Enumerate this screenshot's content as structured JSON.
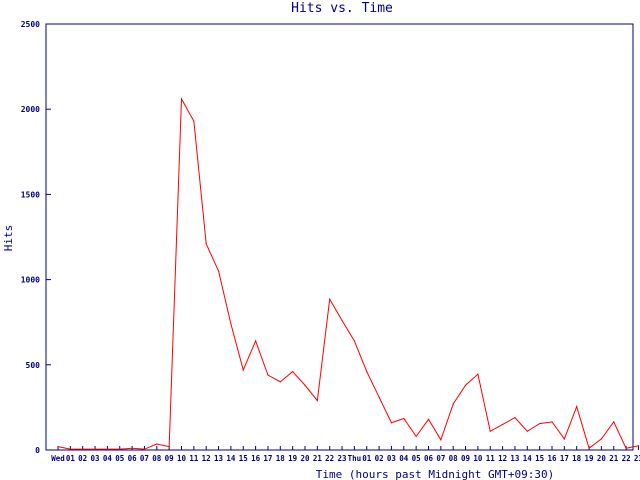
{
  "chart_data": {
    "type": "line",
    "title": "Hits vs. Time",
    "xlabel": "Time (hours past Midnight GMT+09:30)",
    "ylabel": "Hits",
    "ylim": [
      0,
      2500
    ],
    "yticks": [
      "0",
      "500",
      "1000",
      "1500",
      "2000",
      "2500"
    ],
    "xticks": [
      "Wed",
      "01",
      "02",
      "03",
      "04",
      "05",
      "06",
      "07",
      "08",
      "09",
      "10",
      "11",
      "12",
      "13",
      "14",
      "15",
      "16",
      "17",
      "18",
      "19",
      "20",
      "21",
      "22",
      "23",
      "Thu",
      "01",
      "02",
      "03",
      "04",
      "05",
      "06",
      "07",
      "08",
      "09",
      "10",
      "11",
      "12",
      "13",
      "14",
      "15",
      "16",
      "17",
      "18",
      "19",
      "20",
      "21",
      "22",
      "23"
    ],
    "grid": false,
    "colors": {
      "line": "#ff0000",
      "axis": "#000080",
      "text": "#000080"
    },
    "series": [
      {
        "values": [
          20,
          5,
          5,
          5,
          5,
          5,
          10,
          5,
          35,
          20,
          2060,
          1930,
          1210,
          1050,
          740,
          470,
          640,
          440,
          400,
          460,
          380,
          290,
          885,
          760,
          640,
          460,
          310,
          160,
          185,
          80,
          180,
          60,
          270,
          380,
          445,
          110,
          150,
          190,
          110,
          155,
          165,
          65,
          255,
          10,
          65,
          165,
          10,
          25
        ]
      }
    ]
  }
}
